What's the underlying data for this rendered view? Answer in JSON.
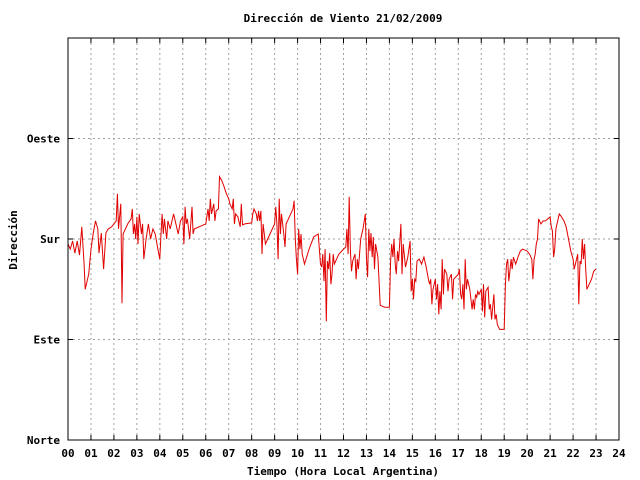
{
  "chart_data": {
    "type": "line",
    "title": "Dirección de Viento 21/02/2009",
    "xlabel": "Tiempo (Hora Local Argentina)",
    "ylabel": "Dirección",
    "xlim": [
      0,
      24
    ],
    "ylim": [
      0,
      400
    ],
    "x_tick_labels": [
      "00",
      "01",
      "02",
      "03",
      "04",
      "05",
      "06",
      "07",
      "08",
      "09",
      "10",
      "11",
      "12",
      "13",
      "14",
      "15",
      "16",
      "17",
      "18",
      "19",
      "20",
      "21",
      "22",
      "23",
      "24"
    ],
    "y_ticks": [
      {
        "value": 0,
        "label": "Norte"
      },
      {
        "value": 100,
        "label": "Este"
      },
      {
        "value": 200,
        "label": "Sur"
      },
      {
        "value": 300,
        "label": "Oeste"
      }
    ],
    "grid": true,
    "series": [
      {
        "color": "#e00000",
        "points": [
          [
            0.0,
            195
          ],
          [
            0.1,
            190
          ],
          [
            0.2,
            198
          ],
          [
            0.3,
            186
          ],
          [
            0.4,
            198
          ],
          [
            0.5,
            184
          ],
          [
            0.6,
            212
          ],
          [
            0.7,
            175
          ],
          [
            0.75,
            150
          ],
          [
            0.9,
            165
          ],
          [
            1.0,
            190
          ],
          [
            1.1,
            206
          ],
          [
            1.2,
            218
          ],
          [
            1.3,
            210
          ],
          [
            1.35,
            186
          ],
          [
            1.45,
            206
          ],
          [
            1.55,
            170
          ],
          [
            1.65,
            206
          ],
          [
            1.75,
            210
          ],
          [
            1.9,
            212
          ],
          [
            2.0,
            215
          ],
          [
            2.1,
            218
          ],
          [
            2.15,
            245
          ],
          [
            2.2,
            210
          ],
          [
            2.3,
            235
          ],
          [
            2.35,
            136
          ],
          [
            2.4,
            205
          ],
          [
            2.5,
            210
          ],
          [
            2.6,
            215
          ],
          [
            2.75,
            220
          ],
          [
            2.8,
            230
          ],
          [
            2.85,
            205
          ],
          [
            2.9,
            215
          ],
          [
            2.95,
            200
          ],
          [
            3.0,
            222
          ],
          [
            3.05,
            195
          ],
          [
            3.1,
            225
          ],
          [
            3.2,
            205
          ],
          [
            3.25,
            215
          ],
          [
            3.3,
            180
          ],
          [
            3.4,
            200
          ],
          [
            3.5,
            215
          ],
          [
            3.6,
            200
          ],
          [
            3.7,
            210
          ],
          [
            3.8,
            205
          ],
          [
            3.9,
            192
          ],
          [
            4.0,
            180
          ],
          [
            4.05,
            205
          ],
          [
            4.1,
            225
          ],
          [
            4.15,
            205
          ],
          [
            4.2,
            220
          ],
          [
            4.3,
            200
          ],
          [
            4.35,
            218
          ],
          [
            4.45,
            210
          ],
          [
            4.6,
            225
          ],
          [
            4.7,
            215
          ],
          [
            4.8,
            205
          ],
          [
            4.9,
            218
          ],
          [
            5.0,
            222
          ],
          [
            5.05,
            195
          ],
          [
            5.1,
            232
          ],
          [
            5.15,
            215
          ],
          [
            5.2,
            220
          ],
          [
            5.3,
            200
          ],
          [
            5.4,
            232
          ],
          [
            5.45,
            205
          ],
          [
            5.5,
            210
          ],
          [
            6.0,
            215
          ],
          [
            6.1,
            230
          ],
          [
            6.15,
            218
          ],
          [
            6.2,
            240
          ],
          [
            6.25,
            225
          ],
          [
            6.35,
            235
          ],
          [
            6.4,
            218
          ],
          [
            6.45,
            228
          ],
          [
            6.55,
            230
          ],
          [
            6.6,
            262
          ],
          [
            6.7,
            258
          ],
          [
            6.8,
            252
          ],
          [
            6.9,
            245
          ],
          [
            7.0,
            240
          ],
          [
            7.05,
            235
          ],
          [
            7.15,
            230
          ],
          [
            7.2,
            240
          ],
          [
            7.25,
            215
          ],
          [
            7.3,
            225
          ],
          [
            7.4,
            222
          ],
          [
            7.5,
            212
          ],
          [
            7.55,
            235
          ],
          [
            7.6,
            214
          ],
          [
            7.7,
            215
          ],
          [
            8.0,
            216
          ],
          [
            8.05,
            225
          ],
          [
            8.1,
            230
          ],
          [
            8.2,
            225
          ],
          [
            8.25,
            218
          ],
          [
            8.3,
            228
          ],
          [
            8.35,
            218
          ],
          [
            8.4,
            228
          ],
          [
            8.45,
            185
          ],
          [
            8.5,
            215
          ],
          [
            8.55,
            205
          ],
          [
            8.6,
            195
          ],
          [
            8.7,
            200
          ],
          [
            8.8,
            205
          ],
          [
            9.0,
            215
          ],
          [
            9.05,
            232
          ],
          [
            9.1,
            215
          ],
          [
            9.15,
            180
          ],
          [
            9.2,
            240
          ],
          [
            9.25,
            205
          ],
          [
            9.3,
            225
          ],
          [
            9.4,
            205
          ],
          [
            9.45,
            192
          ],
          [
            9.5,
            215
          ],
          [
            9.6,
            220
          ],
          [
            9.7,
            225
          ],
          [
            9.8,
            230
          ],
          [
            9.85,
            238
          ],
          [
            9.9,
            200
          ],
          [
            9.95,
            180
          ],
          [
            10.0,
            165
          ],
          [
            10.05,
            210
          ],
          [
            10.1,
            190
          ],
          [
            10.15,
            205
          ],
          [
            10.2,
            185
          ],
          [
            10.3,
            175
          ],
          [
            10.5,
            190
          ],
          [
            10.7,
            202
          ],
          [
            10.9,
            205
          ],
          [
            11.0,
            175
          ],
          [
            11.05,
            172
          ],
          [
            11.1,
            185
          ],
          [
            11.15,
            158
          ],
          [
            11.2,
            190
          ],
          [
            11.25,
            118
          ],
          [
            11.3,
            178
          ],
          [
            11.35,
            170
          ],
          [
            11.4,
            186
          ],
          [
            11.45,
            155
          ],
          [
            11.5,
            165
          ],
          [
            11.55,
            185
          ],
          [
            11.6,
            175
          ],
          [
            11.7,
            180
          ],
          [
            11.8,
            185
          ],
          [
            12.0,
            190
          ],
          [
            12.1,
            192
          ],
          [
            12.15,
            210
          ],
          [
            12.2,
            185
          ],
          [
            12.25,
            242
          ],
          [
            12.3,
            188
          ],
          [
            12.35,
            168
          ],
          [
            12.4,
            178
          ],
          [
            12.5,
            185
          ],
          [
            12.55,
            160
          ],
          [
            12.6,
            180
          ],
          [
            12.65,
            170
          ],
          [
            12.75,
            200
          ],
          [
            12.85,
            210
          ],
          [
            12.95,
            225
          ],
          [
            13.0,
            180
          ],
          [
            13.05,
            162
          ],
          [
            13.1,
            210
          ],
          [
            13.15,
            188
          ],
          [
            13.2,
            206
          ],
          [
            13.25,
            182
          ],
          [
            13.3,
            202
          ],
          [
            13.35,
            170
          ],
          [
            13.4,
            195
          ],
          [
            13.5,
            182
          ],
          [
            13.6,
            134
          ],
          [
            13.8,
            132
          ],
          [
            14.0,
            132
          ],
          [
            14.05,
            178
          ],
          [
            14.1,
            195
          ],
          [
            14.15,
            182
          ],
          [
            14.2,
            200
          ],
          [
            14.25,
            175
          ],
          [
            14.3,
            165
          ],
          [
            14.35,
            188
          ],
          [
            14.4,
            178
          ],
          [
            14.5,
            215
          ],
          [
            14.55,
            165
          ],
          [
            14.6,
            195
          ],
          [
            14.7,
            172
          ],
          [
            14.8,
            182
          ],
          [
            14.9,
            198
          ],
          [
            14.95,
            148
          ],
          [
            15.0,
            160
          ],
          [
            15.05,
            140
          ],
          [
            15.1,
            160
          ],
          [
            15.15,
            158
          ],
          [
            15.2,
            178
          ],
          [
            15.3,
            180
          ],
          [
            15.4,
            175
          ],
          [
            15.5,
            182
          ],
          [
            15.6,
            172
          ],
          [
            15.7,
            160
          ],
          [
            15.75,
            155
          ],
          [
            15.8,
            160
          ],
          [
            15.85,
            135
          ],
          [
            15.9,
            150
          ],
          [
            16.0,
            160
          ],
          [
            16.05,
            140
          ],
          [
            16.1,
            155
          ],
          [
            16.15,
            125
          ],
          [
            16.2,
            148
          ],
          [
            16.25,
            130
          ],
          [
            16.3,
            180
          ],
          [
            16.35,
            145
          ],
          [
            16.4,
            170
          ],
          [
            16.5,
            165
          ],
          [
            16.55,
            148
          ],
          [
            16.6,
            160
          ],
          [
            16.7,
            165
          ],
          [
            16.75,
            140
          ],
          [
            16.8,
            160
          ],
          [
            17.0,
            165
          ],
          [
            17.05,
            170
          ],
          [
            17.1,
            145
          ],
          [
            17.15,
            140
          ],
          [
            17.2,
            155
          ],
          [
            17.25,
            130
          ],
          [
            17.3,
            180
          ],
          [
            17.35,
            150
          ],
          [
            17.4,
            160
          ],
          [
            17.5,
            150
          ],
          [
            17.6,
            130
          ],
          [
            17.65,
            140
          ],
          [
            17.7,
            130
          ],
          [
            17.75,
            145
          ],
          [
            17.8,
            142
          ],
          [
            17.85,
            148
          ],
          [
            17.9,
            145
          ],
          [
            18.0,
            150
          ],
          [
            18.05,
            128
          ],
          [
            18.1,
            155
          ],
          [
            18.15,
            122
          ],
          [
            18.2,
            148
          ],
          [
            18.3,
            152
          ],
          [
            18.35,
            130
          ],
          [
            18.4,
            135
          ],
          [
            18.45,
            120
          ],
          [
            18.5,
            132
          ],
          [
            18.55,
            145
          ],
          [
            18.6,
            120
          ],
          [
            18.65,
            125
          ],
          [
            18.7,
            115
          ],
          [
            18.8,
            110
          ],
          [
            19.0,
            110
          ],
          [
            19.05,
            155
          ],
          [
            19.1,
            175
          ],
          [
            19.15,
            180
          ],
          [
            19.2,
            158
          ],
          [
            19.25,
            168
          ],
          [
            19.3,
            180
          ],
          [
            19.35,
            170
          ],
          [
            19.4,
            182
          ],
          [
            19.5,
            175
          ],
          [
            19.6,
            182
          ],
          [
            19.7,
            188
          ],
          [
            19.8,
            190
          ],
          [
            20.0,
            188
          ],
          [
            20.1,
            185
          ],
          [
            20.2,
            180
          ],
          [
            20.25,
            160
          ],
          [
            20.3,
            180
          ],
          [
            20.35,
            185
          ],
          [
            20.4,
            195
          ],
          [
            20.45,
            200
          ],
          [
            20.5,
            220
          ],
          [
            20.6,
            215
          ],
          [
            20.7,
            218
          ],
          [
            20.8,
            218
          ],
          [
            21.0,
            222
          ],
          [
            21.05,
            212
          ],
          [
            21.1,
            208
          ],
          [
            21.15,
            182
          ],
          [
            21.2,
            190
          ],
          [
            21.25,
            210
          ],
          [
            21.3,
            215
          ],
          [
            21.4,
            225
          ],
          [
            21.5,
            222
          ],
          [
            21.6,
            218
          ],
          [
            21.7,
            212
          ],
          [
            21.8,
            200
          ],
          [
            21.9,
            188
          ],
          [
            22.0,
            180
          ],
          [
            22.05,
            170
          ],
          [
            22.1,
            175
          ],
          [
            22.2,
            185
          ],
          [
            22.25,
            135
          ],
          [
            22.3,
            178
          ],
          [
            22.35,
            175
          ],
          [
            22.4,
            200
          ],
          [
            22.45,
            180
          ],
          [
            22.5,
            195
          ],
          [
            22.55,
            170
          ],
          [
            22.6,
            150
          ],
          [
            22.7,
            155
          ],
          [
            22.8,
            160
          ],
          [
            22.9,
            168
          ],
          [
            23.0,
            170
          ]
        ]
      }
    ]
  }
}
